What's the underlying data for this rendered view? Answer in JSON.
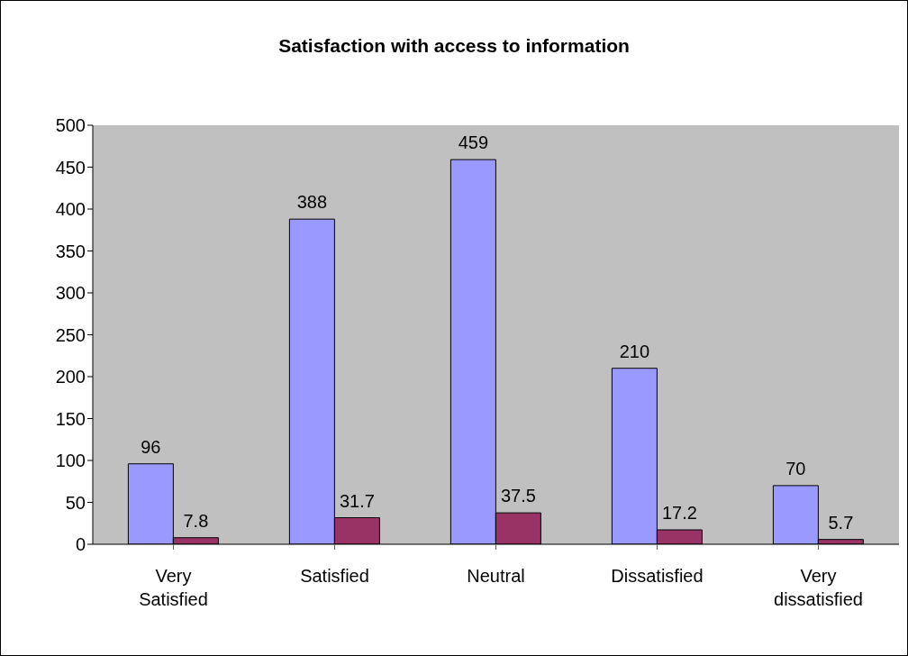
{
  "chart_data": {
    "type": "bar",
    "title": "Satisfaction with access to information",
    "categories": [
      "Very Satisfied",
      "Satisfied",
      "Neutral",
      "Dissatisfied",
      "Very dissatisfied"
    ],
    "series": [
      {
        "color": "#9999ff",
        "values": [
          96,
          388,
          459,
          210,
          70
        ]
      },
      {
        "color": "#993366",
        "values": [
          7.8,
          31.7,
          37.5,
          17.2,
          5.7
        ]
      }
    ],
    "ylim": [
      0,
      500
    ],
    "yticks": [
      0,
      50,
      100,
      150,
      200,
      250,
      300,
      350,
      400,
      450,
      500
    ],
    "data_labels": true,
    "grid": false,
    "legend": false
  }
}
